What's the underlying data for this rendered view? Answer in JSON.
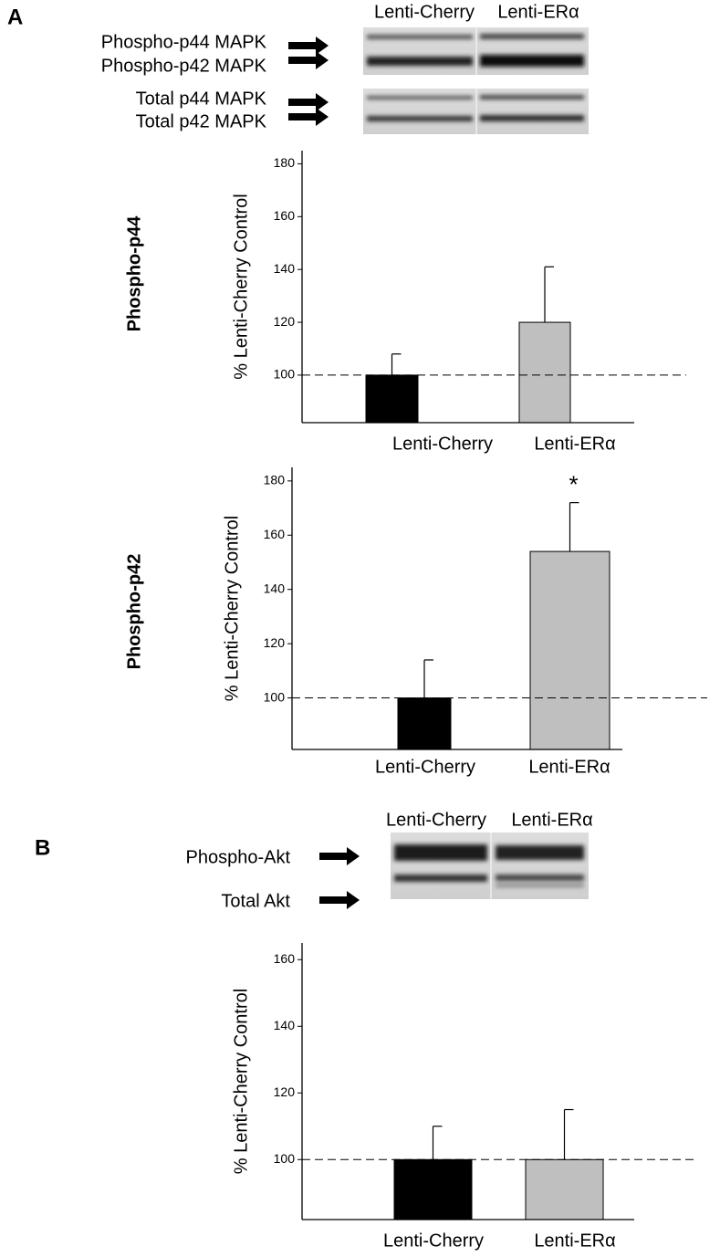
{
  "panel_labels": [
    "A",
    "B"
  ],
  "blots": [
    {
      "lanes": [
        "Lenti-Cherry",
        "Lenti-ERα"
      ],
      "rows": [
        "Phospho-p44 MAPK",
        "Phospho-p42 MAPK",
        "Total p44 MAPK",
        "Total p42 MAPK"
      ]
    },
    {
      "lanes": [
        "Lenti-Cherry",
        "Lenti-ERα"
      ],
      "rows": [
        "Phospho-Akt",
        "Total Akt"
      ]
    }
  ],
  "chart_data": [
    {
      "type": "bar",
      "side_label": "Phospho-p44",
      "y_label": "% Lenti-Cherry Control",
      "categories": [
        "Lenti-Cherry",
        "Lenti-ERα"
      ],
      "values": [
        100,
        120
      ],
      "errors": [
        8,
        21
      ],
      "colors": [
        "#000000",
        "#bfbfbf"
      ],
      "ylim": [
        82,
        185
      ],
      "yticks": [
        100,
        120,
        140,
        160,
        180
      ],
      "reference_line": 100
    },
    {
      "type": "bar",
      "side_label": "Phospho-p42",
      "y_label": "% Lenti-Cherry Control",
      "categories": [
        "Lenti-Cherry",
        "Lenti-ERα"
      ],
      "values": [
        100,
        154
      ],
      "errors": [
        14,
        18
      ],
      "colors": [
        "#000000",
        "#bfbfbf"
      ],
      "ylim": [
        81,
        185
      ],
      "yticks": [
        100,
        120,
        140,
        160,
        180
      ],
      "reference_line": 100,
      "annotation": "*"
    },
    {
      "type": "bar",
      "y_label": "% Lenti-Cherry Control",
      "categories": [
        "Lenti-Cherry",
        "Lenti-ERα"
      ],
      "values": [
        100,
        100
      ],
      "errors": [
        10,
        15
      ],
      "colors": [
        "#000000",
        "#bfbfbf"
      ],
      "ylim": [
        82,
        165
      ],
      "yticks": [
        100,
        120,
        140,
        160
      ],
      "reference_line": 100
    }
  ]
}
